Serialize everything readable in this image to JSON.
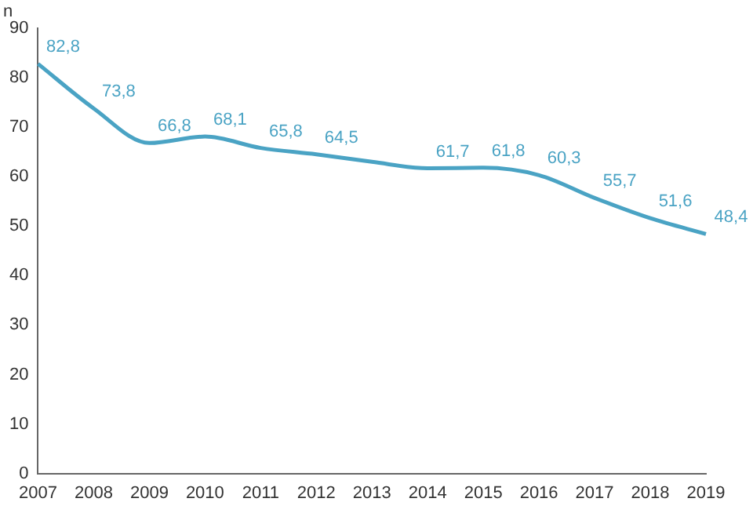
{
  "chart_data": {
    "type": "line",
    "ylabel": "n",
    "categories": [
      "2007",
      "2008",
      "2009",
      "2010",
      "2011",
      "2012",
      "2013",
      "2014",
      "2015",
      "2016",
      "2017",
      "2018",
      "2019"
    ],
    "series": [
      {
        "color": "#4aa3c4",
        "values": [
          82.8,
          73.8,
          66.8,
          68.1,
          65.8,
          64.5,
          63.0,
          61.7,
          61.8,
          60.3,
          55.7,
          51.6,
          48.4
        ],
        "value_labels": [
          "82,8",
          "73,8",
          "66,8",
          "68,1",
          "65,8",
          "64,5",
          null,
          "61,7",
          "61,8",
          "60,3",
          "55,7",
          "51,6",
          "48,4"
        ]
      }
    ],
    "ylim": [
      0,
      90
    ],
    "yticks": [
      0,
      10,
      20,
      30,
      40,
      50,
      60,
      70,
      80,
      90
    ],
    "grid": false,
    "legend": false,
    "marker": "none"
  }
}
